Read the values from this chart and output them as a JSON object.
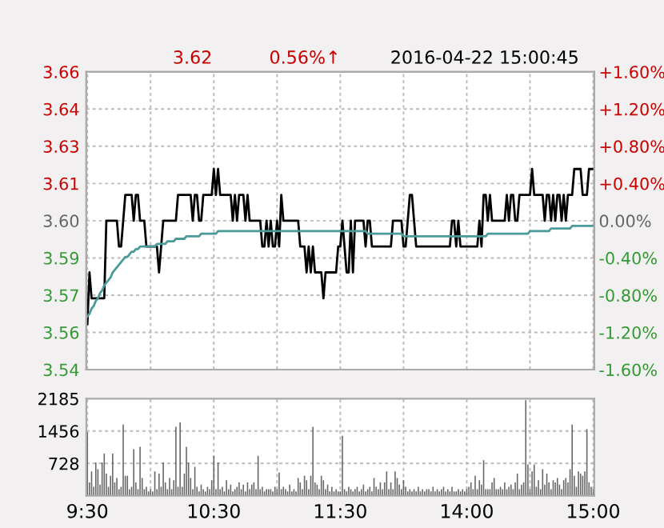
{
  "chart_data": [
    {
      "type": "line",
      "title": "2016-04-22 15:00:45",
      "annotations": [
        "3.62",
        "0.56%↑"
      ],
      "categories": [
        null,
        null,
        null,
        null,
        null,
        null,
        null,
        null,
        null,
        null,
        null,
        null,
        null,
        null,
        null,
        null,
        null,
        null,
        null,
        null,
        null,
        null,
        null,
        null,
        null,
        null,
        null,
        null,
        null,
        null,
        null,
        null,
        null,
        null,
        null,
        null,
        null,
        null,
        null,
        null,
        null,
        null,
        null,
        null,
        null,
        null,
        null,
        null,
        null,
        null,
        null,
        null,
        null,
        null,
        null,
        null,
        null,
        null,
        null,
        null,
        null,
        null,
        null,
        null,
        null,
        null,
        null,
        null,
        null,
        null,
        null,
        null,
        null,
        null,
        null,
        null,
        null,
        null,
        null,
        null,
        null,
        null,
        null,
        null,
        null,
        null,
        null,
        null,
        null,
        null,
        null,
        null,
        null,
        null,
        null,
        null,
        null,
        null,
        null,
        null,
        null,
        null,
        null,
        null,
        null,
        null,
        null,
        null,
        null,
        null,
        null,
        null,
        null,
        null,
        null,
        null,
        null,
        null,
        null,
        null,
        null,
        null,
        null,
        null,
        null,
        null,
        null,
        null,
        null,
        null,
        null,
        null,
        null,
        null,
        null,
        null,
        null,
        null,
        null,
        null,
        null,
        null,
        null,
        null,
        null,
        null,
        null,
        null,
        null,
        null,
        null,
        null,
        null,
        null,
        null,
        null,
        null,
        null,
        null,
        null,
        null,
        null,
        null,
        null,
        null,
        null,
        null,
        null,
        null,
        null,
        null,
        null,
        null,
        null,
        null,
        null,
        null,
        null,
        null,
        null,
        null,
        null,
        null,
        null,
        null,
        null,
        null,
        null,
        null,
        null,
        null,
        null,
        null,
        null,
        null,
        null,
        null,
        null,
        null,
        null,
        null,
        null,
        null,
        null,
        null,
        null,
        null,
        null,
        null,
        null,
        null,
        null,
        null,
        null,
        null,
        null,
        null,
        null,
        null,
        null,
        null,
        null,
        null,
        null,
        null,
        null,
        null,
        null,
        null,
        null,
        null,
        null,
        null,
        null,
        null,
        null,
        null,
        null,
        null,
        null,
        null
      ],
      "ylim": [
        3.5424,
        3.6576
      ],
      "yticks": [
        {
          "value": 3.5424,
          "label": "3.54"
        },
        {
          "value": 3.5568,
          "label": "3.56"
        },
        {
          "value": 3.5712,
          "label": "3.57"
        },
        {
          "value": 3.5856,
          "label": "3.59"
        },
        {
          "value": 3.6,
          "label": "3.60"
        },
        {
          "value": 3.6144,
          "label": "3.61"
        },
        {
          "value": 3.6288,
          "label": "3.63"
        },
        {
          "value": 3.6432,
          "label": "3.64"
        },
        {
          "value": 3.6576,
          "label": "3.66"
        }
      ],
      "y2lim": [
        -1.6,
        1.6
      ],
      "y2ticks": [
        {
          "value": -1.6,
          "label": "-1.60%"
        },
        {
          "value": -1.2,
          "label": "-1.20%"
        },
        {
          "value": -0.8,
          "label": "-0.80%"
        },
        {
          "value": -0.4,
          "label": "-0.40%"
        },
        {
          "value": 0,
          "label": "0.00%"
        },
        {
          "value": 0.4,
          "label": "+0.40%"
        },
        {
          "value": 0.8,
          "label": "+0.80%"
        },
        {
          "value": 1.2,
          "label": "+1.20%"
        },
        {
          "value": 1.6,
          "label": "+1.60%"
        }
      ],
      "grid": true,
      "series": [
        {
          "color": "#000000",
          "values": [
            3.56,
            3.58,
            3.57,
            3.57,
            3.57,
            3.57,
            3.57,
            3.57,
            3.57,
            3.6,
            3.6,
            3.6,
            3.6,
            3.6,
            3.6,
            3.59,
            3.59,
            3.6,
            3.61,
            3.61,
            3.61,
            3.61,
            3.6,
            3.61,
            3.61,
            3.6,
            3.6,
            3.6,
            3.59,
            3.59,
            3.59,
            3.59,
            3.59,
            3.59,
            3.58,
            3.59,
            3.6,
            3.6,
            3.6,
            3.6,
            3.6,
            3.6,
            3.6,
            3.61,
            3.61,
            3.61,
            3.61,
            3.61,
            3.61,
            3.61,
            3.6,
            3.61,
            3.61,
            3.6,
            3.6,
            3.61,
            3.61,
            3.61,
            3.61,
            3.61,
            3.62,
            3.61,
            3.62,
            3.61,
            3.61,
            3.61,
            3.61,
            3.61,
            3.61,
            3.6,
            3.61,
            3.6,
            3.61,
            3.61,
            3.61,
            3.6,
            3.61,
            3.6,
            3.6,
            3.6,
            3.6,
            3.6,
            3.6,
            3.59,
            3.59,
            3.6,
            3.59,
            3.6,
            3.59,
            3.59,
            3.6,
            3.59,
            3.61,
            3.6,
            3.6,
            3.6,
            3.6,
            3.6,
            3.6,
            3.6,
            3.6,
            3.59,
            3.59,
            3.59,
            3.58,
            3.59,
            3.58,
            3.59,
            3.58,
            3.58,
            3.58,
            3.58,
            3.57,
            3.58,
            3.58,
            3.58,
            3.58,
            3.58,
            3.58,
            3.59,
            3.59,
            3.6,
            3.59,
            3.58,
            3.58,
            3.6,
            3.58,
            3.6,
            3.6,
            3.6,
            3.6,
            3.6,
            3.59,
            3.6,
            3.6,
            3.59,
            3.59,
            3.59,
            3.59,
            3.59,
            3.59,
            3.59,
            3.59,
            3.59,
            3.59,
            3.6,
            3.6,
            3.6,
            3.6,
            3.6,
            3.59,
            3.59,
            3.6,
            3.61,
            3.61,
            3.6,
            3.59,
            3.59,
            3.59,
            3.59,
            3.59,
            3.59,
            3.59,
            3.59,
            3.59,
            3.59,
            3.59,
            3.59,
            3.59,
            3.59,
            3.59,
            3.59,
            3.59,
            3.6,
            3.6,
            3.59,
            3.6,
            3.59,
            3.59,
            3.59,
            3.59,
            3.59,
            3.59,
            3.59,
            3.59,
            3.59,
            3.6,
            3.59,
            3.61,
            3.61,
            3.6,
            3.61,
            3.6,
            3.6,
            3.6,
            3.6,
            3.6,
            3.6,
            3.6,
            3.61,
            3.6,
            3.61,
            3.61,
            3.6,
            3.6,
            3.61,
            3.61,
            3.61,
            3.61,
            3.61,
            3.61,
            3.62,
            3.61,
            3.61,
            3.61,
            3.61,
            3.61,
            3.6,
            3.61,
            3.61,
            3.6,
            3.61,
            3.6,
            3.61,
            3.61,
            3.6,
            3.61,
            3.6,
            3.61,
            3.61,
            3.61,
            3.62,
            3.62,
            3.62,
            3.62,
            3.61,
            3.61,
            3.61,
            3.62,
            3.62,
            3.62
          ]
        },
        {
          "color": "#4a9a9a",
          "values": [
            3.563,
            3.564,
            3.566,
            3.567,
            3.569,
            3.57,
            3.572,
            3.573,
            3.575,
            3.576,
            3.577,
            3.578,
            3.58,
            3.581,
            3.582,
            3.583,
            3.584,
            3.585,
            3.586,
            3.586,
            3.587,
            3.588,
            3.588,
            3.589,
            3.589,
            3.59,
            3.59,
            3.59,
            3.59,
            3.59,
            3.59,
            3.59,
            3.59,
            3.591,
            3.591,
            3.591,
            3.591,
            3.591,
            3.592,
            3.592,
            3.592,
            3.592,
            3.593,
            3.593,
            3.593,
            3.593,
            3.593,
            3.594,
            3.594,
            3.594,
            3.594,
            3.594,
            3.594,
            3.594,
            3.595,
            3.595,
            3.595,
            3.595,
            3.595,
            3.595,
            3.595,
            3.595,
            3.596,
            3.596,
            3.596,
            3.596,
            3.596,
            3.596,
            3.596,
            3.596,
            3.596,
            3.596,
            3.596,
            3.596,
            3.596,
            3.596,
            3.596,
            3.596,
            3.596,
            3.596,
            3.596,
            3.596,
            3.596,
            3.596,
            3.596,
            3.596,
            3.596,
            3.596,
            3.596,
            3.596,
            3.596,
            3.596,
            3.596,
            3.596,
            3.596,
            3.596,
            3.596,
            3.596,
            3.596,
            3.596,
            3.596,
            3.596,
            3.596,
            3.596,
            3.596,
            3.596,
            3.596,
            3.596,
            3.596,
            3.596,
            3.596,
            3.596,
            3.596,
            3.596,
            3.596,
            3.596,
            3.596,
            3.596,
            3.596,
            3.596,
            3.596,
            3.596,
            3.596,
            3.596,
            3.596,
            3.596,
            3.596,
            3.596,
            3.596,
            3.596,
            3.596,
            3.596,
            3.596,
            3.595,
            3.595,
            3.595,
            3.595,
            3.595,
            3.595,
            3.595,
            3.595,
            3.595,
            3.595,
            3.595,
            3.595,
            3.595,
            3.595,
            3.595,
            3.595,
            3.595,
            3.594,
            3.594,
            3.594,
            3.594,
            3.594,
            3.594,
            3.594,
            3.594,
            3.594,
            3.594,
            3.594,
            3.594,
            3.594,
            3.594,
            3.594,
            3.594,
            3.594,
            3.594,
            3.594,
            3.594,
            3.594,
            3.594,
            3.594,
            3.594,
            3.594,
            3.594,
            3.594,
            3.594,
            3.594,
            3.594,
            3.594,
            3.594,
            3.594,
            3.594,
            3.594,
            3.594,
            3.594,
            3.594,
            3.594,
            3.594,
            3.595,
            3.595,
            3.595,
            3.595,
            3.595,
            3.595,
            3.595,
            3.595,
            3.595,
            3.595,
            3.595,
            3.595,
            3.595,
            3.595,
            3.595,
            3.595,
            3.595,
            3.595,
            3.595,
            3.595,
            3.596,
            3.596,
            3.596,
            3.596,
            3.596,
            3.596,
            3.596,
            3.596,
            3.596,
            3.596,
            3.597,
            3.597,
            3.597,
            3.597,
            3.597,
            3.597,
            3.597,
            3.597,
            3.597,
            3.597,
            3.598,
            3.598,
            3.598,
            3.598,
            3.598,
            3.598,
            3.598,
            3.598,
            3.598,
            3.598,
            3.598
          ]
        }
      ]
    },
    {
      "type": "bar",
      "color": "#666666",
      "categories": [
        "9:30",
        null,
        null,
        null,
        null,
        null,
        null,
        null,
        null,
        null,
        null,
        null,
        null,
        null,
        null,
        null,
        null,
        null,
        null,
        null,
        null,
        null,
        null,
        null,
        null,
        null,
        null,
        null,
        null,
        null,
        null,
        null,
        null,
        null,
        null,
        null,
        null,
        null,
        null,
        null,
        null,
        null,
        null,
        null,
        null,
        null,
        null,
        null,
        null,
        null,
        null,
        null,
        null,
        null,
        null,
        null,
        null,
        null,
        null,
        null,
        "10:30",
        null,
        null,
        null,
        null,
        null,
        null,
        null,
        null,
        null,
        null,
        null,
        null,
        null,
        null,
        null,
        null,
        null,
        null,
        null,
        null,
        null,
        null,
        null,
        null,
        null,
        null,
        null,
        null,
        null,
        null,
        null,
        null,
        null,
        null,
        null,
        null,
        null,
        null,
        null,
        null,
        null,
        null,
        null,
        null,
        null,
        null,
        null,
        null,
        null,
        null,
        null,
        null,
        null,
        null,
        null,
        null,
        null,
        null,
        null,
        "11:30",
        null,
        null,
        null,
        null,
        null,
        null,
        null,
        null,
        null,
        null,
        null,
        null,
        null,
        null,
        null,
        null,
        null,
        null,
        null,
        null,
        null,
        null,
        null,
        null,
        null,
        null,
        null,
        null,
        null,
        null,
        null,
        null,
        null,
        null,
        null,
        null,
        null,
        null,
        null,
        null,
        null,
        null,
        null,
        null,
        null,
        null,
        null,
        null,
        null,
        null,
        null,
        null,
        null,
        null,
        null,
        null,
        null,
        null,
        null,
        "14:00",
        null,
        null,
        null,
        null,
        null,
        null,
        null,
        null,
        null,
        null,
        null,
        null,
        null,
        null,
        null,
        null,
        null,
        null,
        null,
        null,
        null,
        null,
        null,
        null,
        null,
        null,
        null,
        null,
        null,
        null,
        null,
        null,
        null,
        null,
        null,
        null,
        null,
        null,
        null,
        null,
        null,
        null,
        null,
        null,
        null,
        null,
        null,
        null,
        null,
        null,
        null,
        null,
        null,
        null,
        null,
        null,
        null,
        null,
        null,
        "15:00"
      ],
      "ylim": [
        0,
        2185
      ],
      "yticks": [
        728,
        1456,
        2185
      ],
      "grid": true,
      "values": [
        1430,
        300,
        550,
        200,
        750,
        600,
        250,
        750,
        950,
        500,
        200,
        450,
        950,
        300,
        400,
        150,
        200,
        1600,
        450,
        450,
        150,
        200,
        1050,
        300,
        150,
        1100,
        400,
        150,
        200,
        100,
        150,
        100,
        550,
        150,
        500,
        200,
        750,
        300,
        150,
        400,
        150,
        350,
        1550,
        200,
        1650,
        200,
        500,
        1100,
        750,
        400,
        150,
        650,
        200,
        100,
        250,
        150,
        100,
        200,
        150,
        350,
        900,
        150,
        750,
        150,
        200,
        100,
        350,
        150,
        250,
        100,
        150,
        200,
        300,
        150,
        250,
        100,
        300,
        150,
        250,
        300,
        150,
        900,
        150,
        200,
        100,
        150,
        150,
        150,
        100,
        200,
        150,
        520,
        150,
        200,
        150,
        100,
        250,
        100,
        150,
        100,
        400,
        300,
        150,
        450,
        350,
        150,
        450,
        1550,
        300,
        250,
        150,
        450,
        350,
        150,
        250,
        100,
        200,
        100,
        150,
        100,
        100,
        1350,
        150,
        100,
        200,
        150,
        100,
        150,
        200,
        100,
        150,
        250,
        100,
        150,
        200,
        100,
        400,
        200,
        150,
        300,
        150,
        300,
        550,
        150,
        300,
        150,
        550,
        400,
        250,
        150,
        350,
        200,
        100,
        150,
        100,
        150,
        100,
        200,
        100,
        150,
        100,
        150,
        150,
        100,
        200,
        100,
        150,
        100,
        150,
        200,
        100,
        150,
        100,
        200,
        100,
        100,
        150,
        100,
        150,
        100,
        150,
        200,
        300,
        150,
        450,
        150,
        350,
        250,
        800,
        150,
        150,
        150,
        300,
        400,
        150,
        150,
        200,
        150,
        300,
        150,
        200,
        250,
        150,
        300,
        500,
        150,
        250,
        300,
        2150,
        700,
        150,
        550,
        700,
        200,
        350,
        150,
        600,
        250,
        500,
        300,
        150,
        350,
        300,
        400,
        250,
        150,
        350,
        400,
        300,
        600,
        1600,
        450,
        200,
        550,
        500,
        450,
        550,
        1500,
        300,
        200,
        150
      ]
    }
  ]
}
